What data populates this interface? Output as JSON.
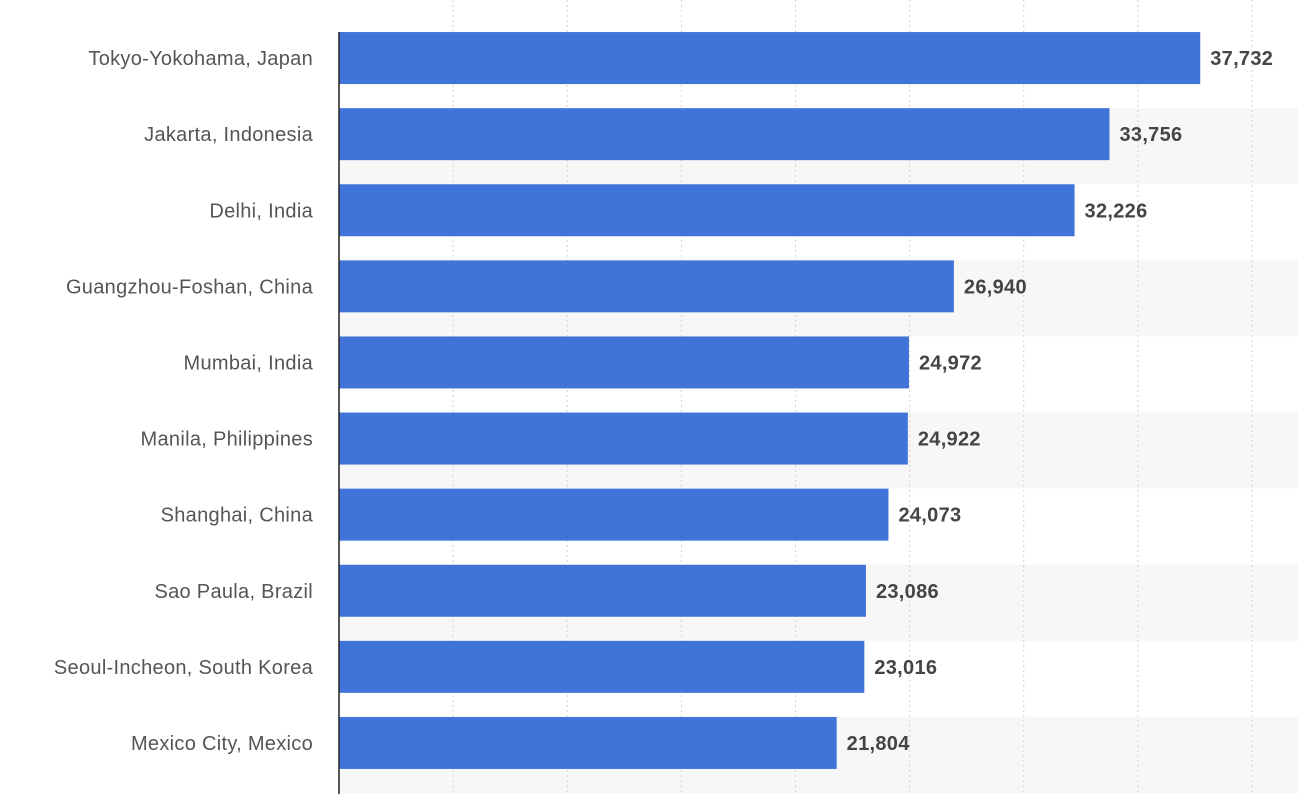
{
  "chart_data": {
    "type": "bar",
    "orientation": "horizontal",
    "categories": [
      "Tokyo-Yokohama, Japan",
      "Jakarta, Indonesia",
      "Delhi, India",
      "Guangzhou-Foshan, China",
      "Mumbai, India",
      "Manila, Philippines",
      "Shanghai, China",
      "Sao Paula, Brazil",
      "Seoul-Incheon, South Korea",
      "Mexico City, Mexico"
    ],
    "values": [
      37732,
      33756,
      32226,
      26940,
      24972,
      24922,
      24073,
      23086,
      23016,
      21804
    ],
    "value_labels": [
      "37,732",
      "33,756",
      "32,226",
      "26,940",
      "24,972",
      "24,922",
      "24,073",
      "23,086",
      "23,016",
      "21,804"
    ],
    "xlim": [
      0,
      40000
    ],
    "x_gridlines": [
      5000,
      10000,
      15000,
      20000,
      25000,
      30000,
      35000,
      40000
    ],
    "grid": true,
    "legend": "none",
    "colors": {
      "bar": "#4174d8",
      "band": "#f7f7f7",
      "axis": "#222222"
    }
  }
}
